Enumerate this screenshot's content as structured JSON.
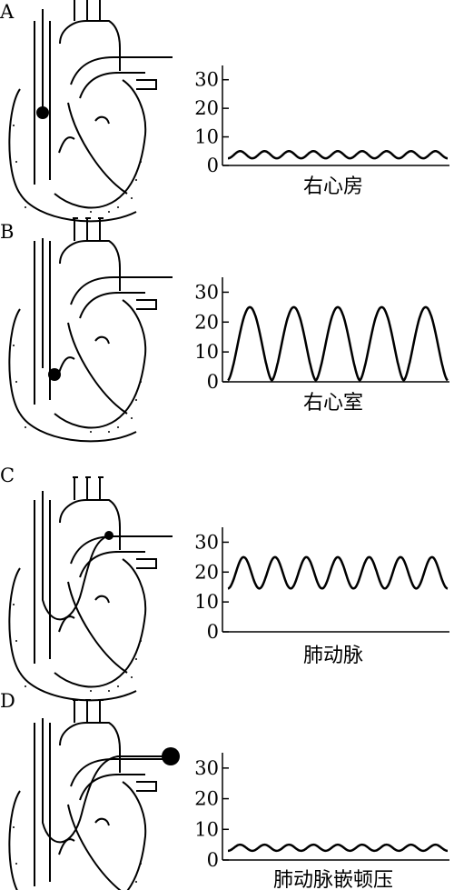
{
  "panels": [
    {
      "letter": "A",
      "caption": "右心房",
      "y_ticks": [
        "30",
        "20",
        "10",
        "0"
      ],
      "chart_data": {
        "type": "line",
        "title": "",
        "xlabel": "右心房",
        "ylabel": "",
        "ylim": [
          0,
          35
        ],
        "y_ticks": [
          0,
          10,
          20,
          30
        ],
        "waveform": {
          "cycles": 9,
          "min": 2.5,
          "max": 5.0
        }
      }
    },
    {
      "letter": "B",
      "caption": "右心室",
      "y_ticks": [
        "30",
        "20",
        "10",
        "0"
      ],
      "chart_data": {
        "type": "line",
        "title": "",
        "xlabel": "右心室",
        "ylabel": "",
        "ylim": [
          0,
          35
        ],
        "y_ticks": [
          0,
          10,
          20,
          30
        ],
        "waveform": {
          "cycles": 5,
          "min": 0.5,
          "max": 25.0
        }
      }
    },
    {
      "letter": "C",
      "caption": "肺动脉",
      "y_ticks": [
        "30",
        "20",
        "10",
        "0"
      ],
      "chart_data": {
        "type": "line",
        "title": "",
        "xlabel": "肺动脉",
        "ylabel": "",
        "ylim": [
          0,
          35
        ],
        "y_ticks": [
          0,
          10,
          20,
          30
        ],
        "waveform": {
          "cycles": 7,
          "min": 14.5,
          "max": 25.0
        }
      }
    },
    {
      "letter": "D",
      "caption": "肺动脉嵌顿压",
      "y_ticks": [
        "30",
        "20",
        "10",
        "0"
      ],
      "chart_data": {
        "type": "line",
        "title": "",
        "xlabel": "肺动脉嵌顿压",
        "ylabel": "",
        "ylim": [
          0,
          35
        ],
        "y_ticks": [
          0,
          10,
          20,
          30
        ],
        "waveform": {
          "cycles": 9,
          "min": 3.0,
          "max": 5.0
        }
      }
    }
  ]
}
